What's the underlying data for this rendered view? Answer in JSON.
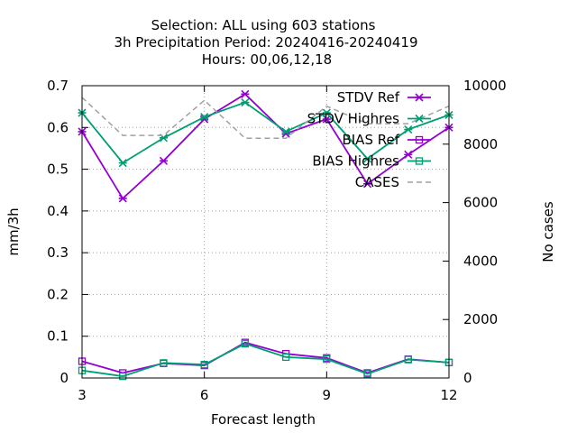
{
  "titles": [
    "Selection: ALL using   603 stations",
    "3h Precipitation   Period: 20240416-20240419",
    "Hours:  00,06,12,18"
  ],
  "colors": {
    "purple": "#9400d3",
    "green": "#009e73",
    "gray": "#a0a0a0",
    "grid": "#a0a0a0",
    "axis": "#000000"
  },
  "chart_data": {
    "type": "line",
    "xlabel": "Forecast length",
    "ylabel": "mm/3h",
    "y2label": "No cases",
    "xlim": [
      3,
      12
    ],
    "ylim": [
      0,
      0.7
    ],
    "y2lim": [
      0,
      10000
    ],
    "xticks": [
      "3",
      "6",
      "9",
      "12"
    ],
    "yticks": [
      "0",
      "0.1",
      "0.2",
      "0.3",
      "0.4",
      "0.5",
      "0.6",
      "0.7"
    ],
    "y2ticks": [
      "0",
      "2000",
      "4000",
      "6000",
      "8000",
      "10000"
    ],
    "x": [
      3,
      4,
      5,
      6,
      7,
      8,
      9,
      10,
      11,
      12
    ],
    "grid": true,
    "legend_position": "top-right",
    "series": [
      {
        "name": "STDV Ref",
        "axis": "y",
        "color": "#9400d3",
        "marker": "x",
        "values": [
          0.59,
          0.43,
          0.52,
          0.62,
          0.68,
          0.585,
          0.62,
          0.465,
          0.535,
          0.6
        ]
      },
      {
        "name": "STDV Highres",
        "axis": "y",
        "color": "#009e73",
        "marker": "x",
        "values": [
          0.635,
          0.515,
          0.575,
          0.625,
          0.66,
          0.59,
          0.635,
          0.525,
          0.595,
          0.63
        ]
      },
      {
        "name": "BIAS Ref",
        "axis": "y",
        "color": "#9400d3",
        "marker": "square",
        "values": [
          0.04,
          0.012,
          0.035,
          0.03,
          0.085,
          0.058,
          0.048,
          0.012,
          0.045,
          0.037
        ]
      },
      {
        "name": "BIAS Highres",
        "axis": "y",
        "color": "#009e73",
        "marker": "square",
        "values": [
          0.018,
          0.004,
          0.036,
          0.032,
          0.082,
          0.05,
          0.045,
          0.01,
          0.044,
          0.037
        ]
      },
      {
        "name": "CASES",
        "axis": "y2",
        "color": "#a0a0a0",
        "marker": "none",
        "dashed": true,
        "values": [
          9600,
          8300,
          8300,
          9500,
          8200,
          8200,
          9300,
          8700,
          8700,
          9300
        ]
      }
    ]
  }
}
